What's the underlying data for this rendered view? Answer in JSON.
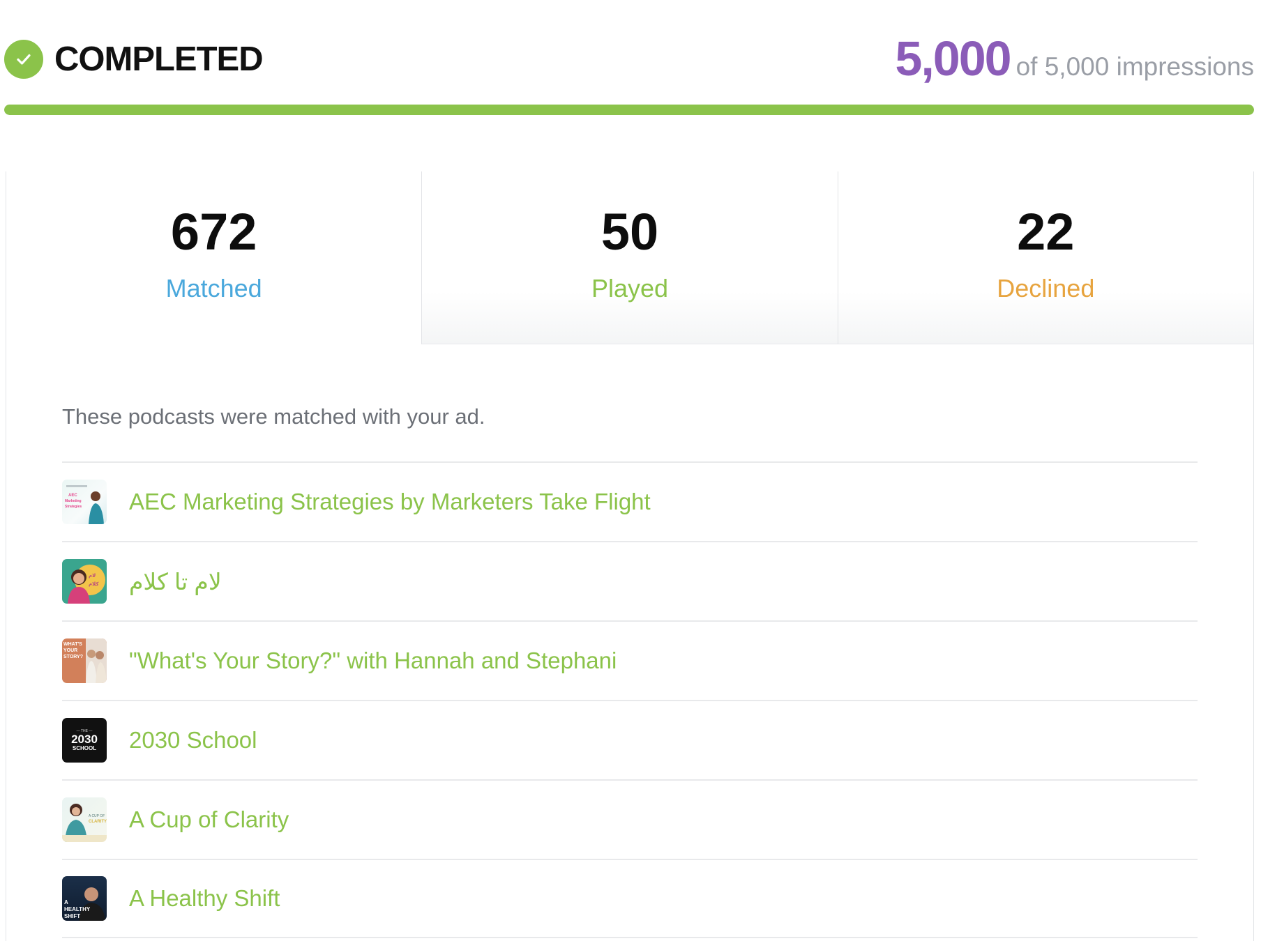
{
  "campaign": {
    "status": "COMPLETED",
    "impressions_delivered": "5,000",
    "impressions_total_text": "of 5,000 impressions",
    "progress_fraction": 1.0
  },
  "stats": [
    {
      "value": "672",
      "label": "Matched"
    },
    {
      "value": "50",
      "label": "Played"
    },
    {
      "value": "22",
      "label": "Declined"
    }
  ],
  "matched_panel": {
    "intro": "These podcasts were matched with your ad.",
    "podcasts": [
      {
        "title": "AEC Marketing Strategies by Marketers Take Flight",
        "thumb_text": "AEC Marketing Strategies"
      },
      {
        "title": "لام تا کلام",
        "thumb_text": "لام تا کلام"
      },
      {
        "title": "\"What's Your Story?\" with Hannah and Stephani",
        "thumb_text": "WHAT'S YOUR STORY?"
      },
      {
        "title": "2030 School",
        "thumb_text": "THE 2030 SCHOOL"
      },
      {
        "title": "A Cup of Clarity",
        "thumb_text": "A CUP OF CLARITY"
      },
      {
        "title": "A Healthy Shift",
        "thumb_text": "A HEALTHY SHIFT"
      }
    ]
  },
  "colors": {
    "accent_green": "#8bc34a",
    "impressions_purple": "#8b5cb8",
    "matched_blue": "#4aa8dc",
    "declined_orange": "#e7a43f"
  },
  "icons": {
    "status": "check-circle-icon"
  }
}
